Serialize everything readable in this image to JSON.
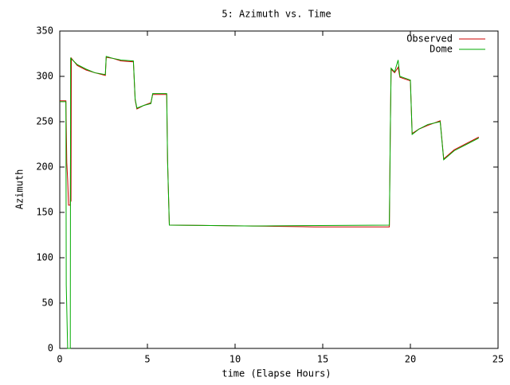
{
  "chart_data": {
    "type": "line",
    "title": "5: Azimuth vs. Time",
    "x_label": "time (Elapse Hours)",
    "y_label": "Azimuth",
    "xlim": [
      0,
      25
    ],
    "xticks": [
      0,
      5,
      10,
      15,
      20,
      25
    ],
    "ylim": [
      0,
      350
    ],
    "yticks": [
      0,
      50,
      100,
      150,
      200,
      250,
      300,
      350
    ],
    "legend": "top-right",
    "series": [
      {
        "name": "Observed",
        "color": "#cc0000",
        "x": [
          0,
          0.35,
          0.37,
          0.4,
          0.45,
          0.5,
          0.6,
          0.62,
          0.64,
          0.66,
          1,
          1.5,
          2,
          2.6,
          2.65,
          3,
          3.5,
          4.2,
          4.3,
          4.4,
          4.8,
          5.2,
          5.3,
          6.1,
          6.15,
          6.25,
          11,
          14.5,
          18.8,
          18.85,
          18.9,
          19.1,
          19.3,
          19.4,
          20.0,
          20.1,
          20.5,
          21.0,
          21.7,
          21.9,
          22.5,
          23.2,
          23.9
        ],
        "values": [
          273,
          273,
          245,
          205,
          186,
          158,
          158,
          240,
          162,
          320,
          312,
          307,
          304,
          301,
          321,
          320,
          317,
          316,
          274,
          264,
          268,
          271,
          280,
          280,
          207,
          136,
          135,
          134,
          134,
          232,
          308,
          304,
          310,
          299,
          295,
          237,
          242,
          246,
          251,
          209,
          219,
          226,
          233
        ]
      },
      {
        "name": "Dome",
        "color": "#00aa00",
        "x": [
          0,
          0.35,
          0.37,
          0.45,
          0.6,
          0.62,
          1,
          1.5,
          2,
          2.6,
          2.65,
          3,
          3.5,
          4.2,
          4.3,
          4.4,
          4.8,
          5.2,
          5.3,
          6.1,
          6.15,
          6.25,
          11,
          18.8,
          18.85,
          18.9,
          19.1,
          19.3,
          19.4,
          20.0,
          20.1,
          20.5,
          21.0,
          21.7,
          21.9,
          22.5,
          23.2,
          23.9
        ],
        "values": [
          272,
          272,
          70,
          0,
          0,
          320,
          313,
          308,
          304,
          302,
          322,
          320,
          318,
          317,
          275,
          265,
          268,
          270,
          281,
          281,
          207,
          136,
          135,
          136,
          232,
          309,
          305,
          318,
          300,
          296,
          236,
          242,
          247,
          250,
          208,
          218,
          225,
          232
        ]
      }
    ]
  }
}
